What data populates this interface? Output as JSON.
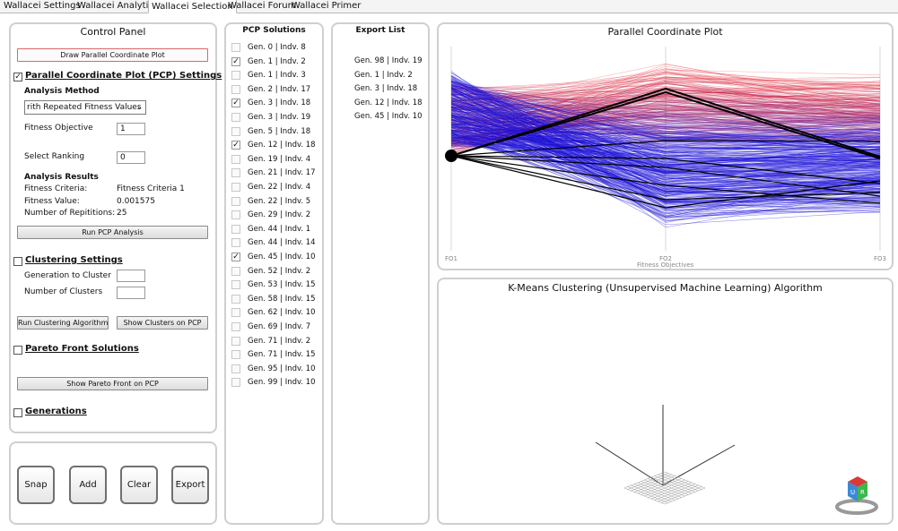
{
  "tabs": [
    {
      "label": "Wallacei Settings"
    },
    {
      "label": "Wallacei Analytics"
    },
    {
      "label": "Wallacei Selection"
    },
    {
      "label": "Wallacei Forum"
    },
    {
      "label": "Wallacei Primer"
    }
  ],
  "control_panel": {
    "title": "Control Panel",
    "draw_button": "Draw Parallel Coordinate Plot",
    "pcp_settings": {
      "checked": true,
      "label": "Parallel Coordinate Plot (PCP) Settings",
      "analysis_method_label": "Analysis Method",
      "analysis_method_value": "rith Repeated Fitness Values",
      "fitness_objective_label": "Fitness Objective",
      "fitness_objective_value": "1",
      "select_ranking_label": "Select Ranking",
      "select_ranking_value": "0",
      "analysis_results_label": "Analysis Results",
      "fitness_criteria_label": "Fitness Criteria:",
      "fitness_criteria_value": "Fitness Criteria 1",
      "fitness_value_label": "Fitness Value:",
      "fitness_value_value": "0.001575",
      "repetitions_label": "Number of Repititions:",
      "repetitions_value": "25",
      "run_pcp_button": "Run PCP Analysis"
    },
    "clustering": {
      "checked": false,
      "label": "Clustering Settings",
      "generation_label": "Generation to Cluster",
      "generation_value": "",
      "clusters_label": "Number of Clusters",
      "clusters_value": "",
      "run_button": "Run Clustering Algorithm",
      "show_button": "Show Clusters on PCP"
    },
    "pareto": {
      "checked": false,
      "label": "Pareto Front Solutions",
      "show_button": "Show Pareto Front on PCP"
    },
    "generations": {
      "checked": false,
      "label": "Generations"
    }
  },
  "actions": {
    "snap": "Snap",
    "add": "Add",
    "clear": "Clear",
    "export": "Export"
  },
  "pcp_solutions": {
    "title": "PCP Solutions",
    "items": [
      {
        "label": "Gen. 0 | Indv. 8",
        "checked": false
      },
      {
        "label": "Gen. 1 | Indv. 2",
        "checked": true
      },
      {
        "label": "Gen. 1 | Indv. 3",
        "checked": false
      },
      {
        "label": "Gen. 2 | Indv. 17",
        "checked": false
      },
      {
        "label": "Gen. 3 | Indv. 18",
        "checked": true
      },
      {
        "label": "Gen. 3 | Indv. 19",
        "checked": false
      },
      {
        "label": "Gen. 5 | Indv. 18",
        "checked": false
      },
      {
        "label": "Gen. 12 | Indv. 18",
        "checked": true
      },
      {
        "label": "Gen. 19 | Indv. 4",
        "checked": false
      },
      {
        "label": "Gen. 21 | Indv. 17",
        "checked": false
      },
      {
        "label": "Gen. 22 | Indv. 4",
        "checked": false
      },
      {
        "label": "Gen. 22 | Indv. 5",
        "checked": false
      },
      {
        "label": "Gen. 29 | Indv. 2",
        "checked": false
      },
      {
        "label": "Gen. 44 | Indv. 1",
        "checked": false
      },
      {
        "label": "Gen. 44 | Indv. 14",
        "checked": false
      },
      {
        "label": "Gen. 45 | Indv. 10",
        "checked": true
      },
      {
        "label": "Gen. 52 | Indv. 2",
        "checked": false
      },
      {
        "label": "Gen. 53 | Indv. 15",
        "checked": false
      },
      {
        "label": "Gen. 58 | Indv. 15",
        "checked": false
      },
      {
        "label": "Gen. 62 | Indv. 10",
        "checked": false
      },
      {
        "label": "Gen. 69 | Indv. 7",
        "checked": false
      },
      {
        "label": "Gen. 71 | Indv. 2",
        "checked": false
      },
      {
        "label": "Gen. 71 | Indv. 15",
        "checked": false
      },
      {
        "label": "Gen. 95 | Indv. 10",
        "checked": false
      },
      {
        "label": "Gen. 99 | Indv. 10",
        "checked": false
      }
    ]
  },
  "export_list": {
    "title": "Export List",
    "items": [
      "Gen. 98 | Indv. 19",
      "Gen. 1 | Indv. 2",
      "Gen. 3 | Indv. 18",
      "Gen. 12 | Indv. 18",
      "Gen. 45 | Indv. 10"
    ]
  },
  "pcp_chart": {
    "title": "Parallel Coordinate Plot",
    "xlabel": "Fitness Objectives",
    "axis_labels": [
      "FO1",
      "FO2",
      "FO3"
    ],
    "colors": {
      "high": "#e8202a",
      "low": "#1a10d8",
      "highlight": "#000000"
    }
  },
  "kmeans": {
    "title": "K-Means Clustering (Unsupervised Machine Learning) Algorithm",
    "view_cube_faces": [
      "U",
      "R"
    ]
  }
}
